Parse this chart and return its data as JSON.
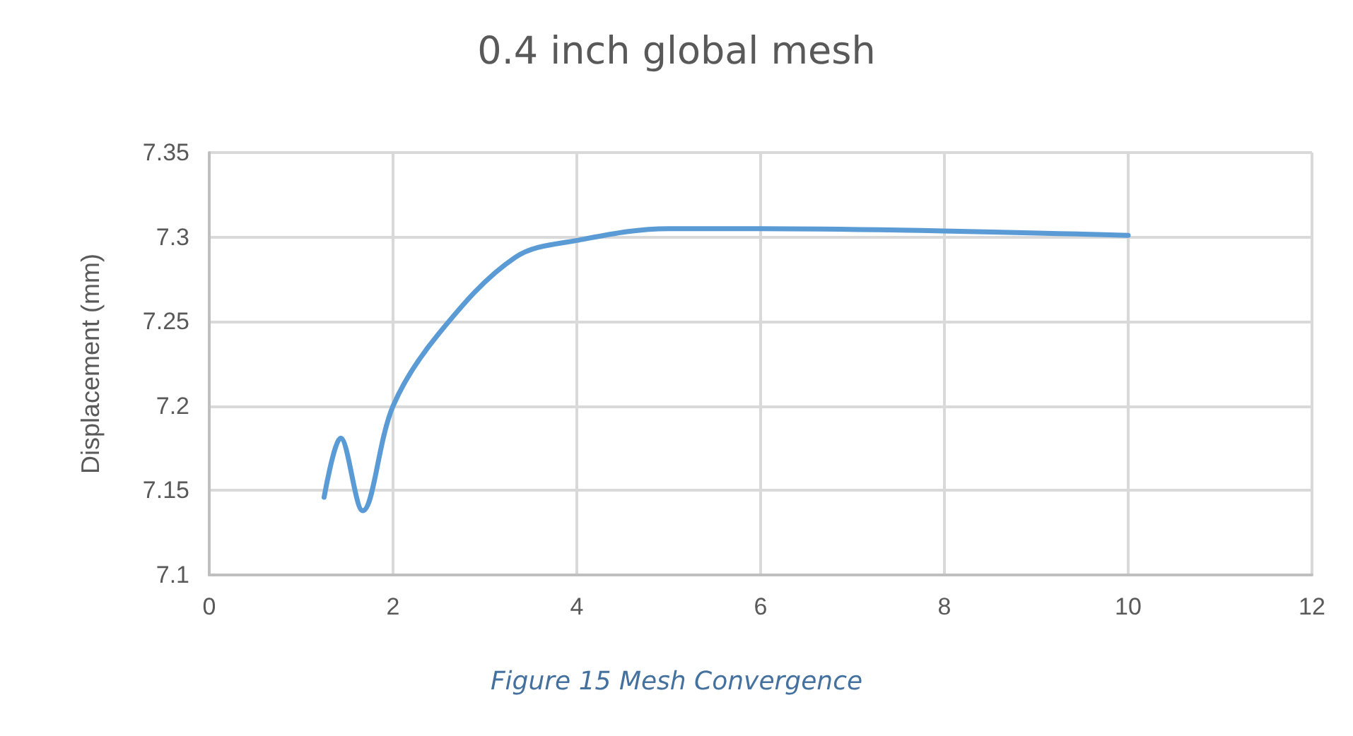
{
  "chart_data": {
    "type": "line",
    "title": "0.4 inch global mesh",
    "ylabel": "Displacement (mm)",
    "annotations": [
      "Figure 15 Mesh Convergence"
    ],
    "series": [
      {
        "color": "#5b9bd5",
        "x": [
          1.25,
          1.43,
          1.67,
          2,
          2.5,
          3.33,
          4,
          5,
          6,
          10
        ],
        "values": [
          7.146,
          7.181,
          7.138,
          7.2,
          7.243,
          7.288,
          7.298,
          7.305,
          7.305,
          7.301
        ]
      }
    ],
    "xlim": [
      0,
      12
    ],
    "xticks": [
      0,
      2,
      4,
      6,
      8,
      10,
      12
    ],
    "ylim": [
      7.1,
      7.35
    ],
    "yticks": [
      7.1,
      7.15,
      7.2,
      7.25,
      7.3,
      7.35
    ],
    "grid": true,
    "marker": "none",
    "line_style": "solid"
  }
}
